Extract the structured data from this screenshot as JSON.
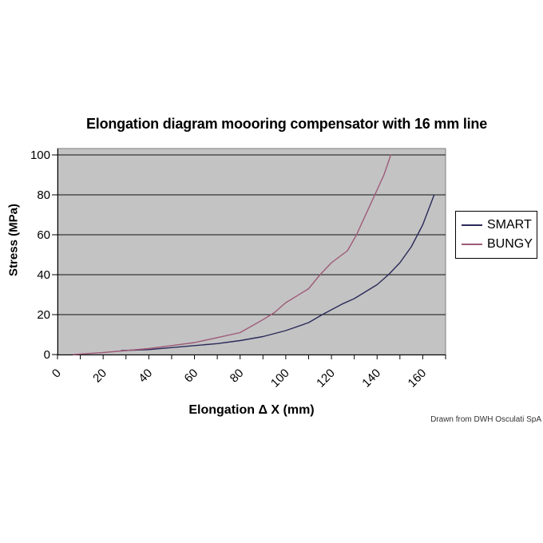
{
  "page": {
    "background": "#ffffff"
  },
  "chart_data": {
    "type": "line",
    "title": "Elongation diagram moooring compensator with 16 mm line",
    "xlabel": "Elongation Δ X (mm)",
    "ylabel": "Stress (MPa)",
    "credit": "Drawn from DWH Osculati SpA",
    "xlim": [
      0,
      170
    ],
    "ylim": [
      0,
      100
    ],
    "x_tick_labels": [
      0,
      20,
      40,
      60,
      80,
      100,
      120,
      140,
      160
    ],
    "x_minor_tick_step": 10,
    "y_tick_labels": [
      0,
      20,
      40,
      60,
      80,
      100
    ],
    "grid": true,
    "legend_position": "right",
    "colors": {
      "plot_bg": "#c3c3c3",
      "plot_border": "#7f7f7f",
      "gridline": "#111111",
      "axis": "#000000"
    },
    "series": [
      {
        "name": "SMART",
        "color": "#2a2a5a",
        "points": [
          [
            28,
            2
          ],
          [
            40,
            2.5
          ],
          [
            50,
            3.5
          ],
          [
            60,
            4.5
          ],
          [
            70,
            5.5
          ],
          [
            80,
            7
          ],
          [
            90,
            9
          ],
          [
            100,
            12
          ],
          [
            110,
            16
          ],
          [
            116,
            20
          ],
          [
            125,
            25.5
          ],
          [
            130,
            28
          ],
          [
            140,
            35
          ],
          [
            145,
            40
          ],
          [
            150,
            46
          ],
          [
            155,
            54
          ],
          [
            160,
            65
          ],
          [
            165,
            80
          ]
        ]
      },
      {
        "name": "BUNGY",
        "color": "#9e5a78",
        "points": [
          [
            7,
            0
          ],
          [
            20,
            1
          ],
          [
            30,
            2
          ],
          [
            40,
            3
          ],
          [
            50,
            4.5
          ],
          [
            60,
            6
          ],
          [
            70,
            8.5
          ],
          [
            80,
            11
          ],
          [
            90,
            17.5
          ],
          [
            95,
            21
          ],
          [
            100,
            26
          ],
          [
            105,
            29.5
          ],
          [
            110,
            33
          ],
          [
            115,
            40
          ],
          [
            120,
            46
          ],
          [
            127,
            52
          ],
          [
            131,
            60
          ],
          [
            135,
            70
          ],
          [
            139,
            80
          ],
          [
            143,
            90
          ],
          [
            146,
            100
          ]
        ]
      }
    ]
  }
}
